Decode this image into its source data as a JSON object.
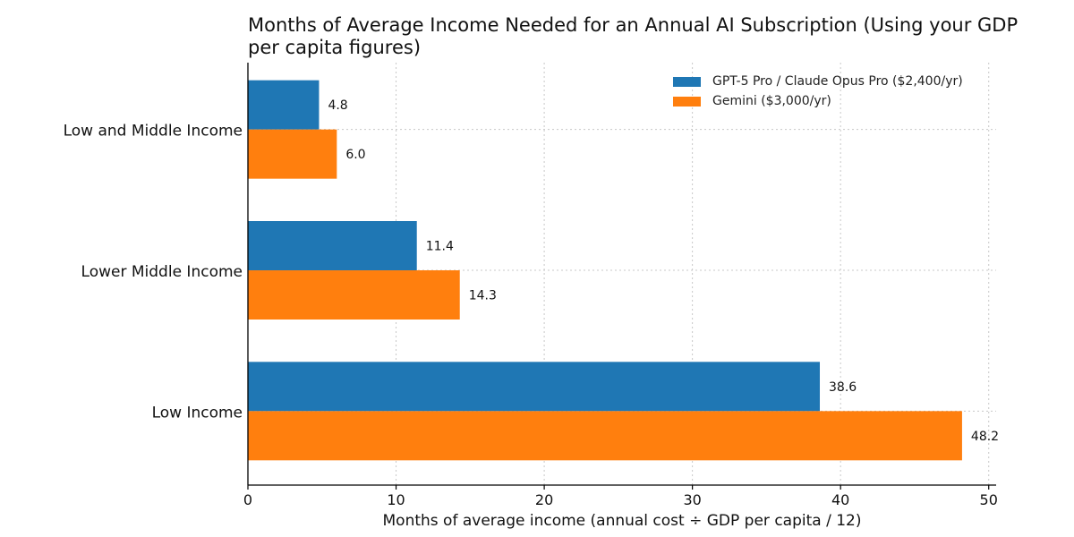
{
  "chart_data": {
    "type": "bar",
    "orientation": "horizontal",
    "title_lines": [
      "Months of Average Income Needed for an Annual AI Subscription (Using your GDP",
      "per capita figures)"
    ],
    "xlabel": "Months of average income (annual cost ÷ GDP per capita / 12)",
    "ylabel": "",
    "xlim": [
      0,
      50.5
    ],
    "xticks": [
      0,
      10,
      20,
      30,
      40,
      50
    ],
    "xtick_labels": [
      "0",
      "10",
      "20",
      "30",
      "40",
      "50"
    ],
    "grid": true,
    "legend_position": "top-right",
    "categories": [
      "Low and Middle Income",
      "Lower Middle Income",
      "Low Income"
    ],
    "series": [
      {
        "name": "GPT-5 Pro / Claude Opus Pro ($2,400/yr)",
        "color": "#1f77b4",
        "values": [
          4.8,
          11.4,
          38.6
        ],
        "labels": [
          "4.8",
          "11.4",
          "38.6"
        ]
      },
      {
        "name": "Gemini ($3,000/yr)",
        "color": "#ff7f0e",
        "values": [
          6.0,
          14.3,
          48.2
        ],
        "labels": [
          "6.0",
          "14.3",
          "48.2"
        ]
      }
    ]
  }
}
